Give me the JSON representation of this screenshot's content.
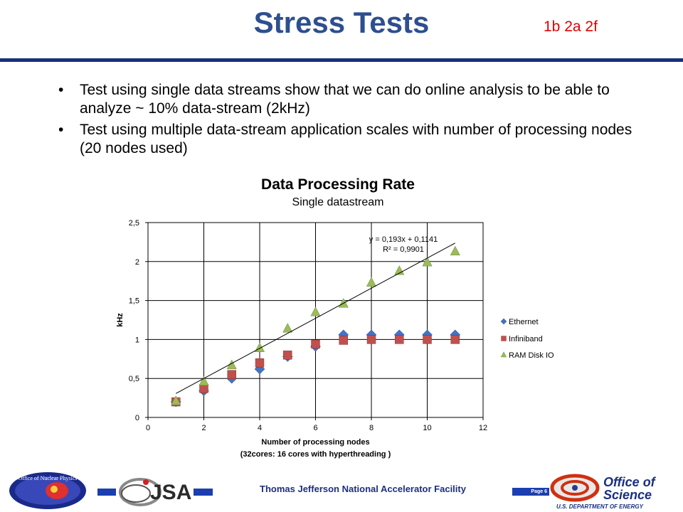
{
  "slide": {
    "title": "Stress Tests",
    "tag": "1b 2a 2f",
    "bullets": [
      "Test using single data streams show that we can do online analysis to be able to analyze ~ 10% data-stream (2kHz)",
      "Test using multiple data-stream application scales with number of processing nodes (20 nodes used)"
    ],
    "footer": "Thomas Jefferson National Accelerator Facility",
    "page_label": "Page 6",
    "logos": {
      "nuclear_physics": "Office of Nuclear Physics",
      "jsa": "JSA",
      "science_line1": "Office of",
      "science_line2": "Science",
      "science_line3": "U.S. DEPARTMENT OF ENERGY"
    }
  },
  "chart_data": {
    "type": "scatter",
    "title": "Data Processing Rate",
    "subtitle": "Single datastream",
    "xlabel_line1": "Number of processing nodes",
    "xlabel_line2": "(32cores: 16 cores with hyperthreading )",
    "ylabel": "kHz",
    "xlim": [
      0,
      12
    ],
    "ylim": [
      0,
      2.5
    ],
    "xticks": [
      "0",
      "2",
      "4",
      "6",
      "8",
      "10",
      "12"
    ],
    "yticks": [
      "0",
      "0,5",
      "1",
      "1,5",
      "2",
      "2,5"
    ],
    "grid": true,
    "legend_position": "right",
    "series": [
      {
        "name": "Ethernet",
        "marker": "diamond",
        "color": "#4472c4",
        "x": [
          1,
          2,
          3,
          4,
          5,
          6,
          7,
          8,
          9,
          10,
          11
        ],
        "y": [
          0.2,
          0.34,
          0.5,
          0.62,
          0.78,
          0.91,
          1.06,
          1.06,
          1.06,
          1.06,
          1.06
        ]
      },
      {
        "name": "Infiniband",
        "marker": "square",
        "color": "#c0504d",
        "x": [
          1,
          2,
          3,
          4,
          5,
          6,
          7,
          8,
          9,
          10,
          11
        ],
        "y": [
          0.2,
          0.37,
          0.55,
          0.7,
          0.8,
          0.94,
          0.99,
          1.0,
          1.0,
          1.0,
          1.0
        ]
      },
      {
        "name": "RAM Disk IO",
        "marker": "triangle",
        "color": "#9bbb59",
        "x": [
          1,
          2,
          3,
          4,
          5,
          6,
          7,
          8,
          9,
          10,
          11
        ],
        "y": [
          0.21,
          0.46,
          0.67,
          0.89,
          1.14,
          1.35,
          1.46,
          1.73,
          1.88,
          1.99,
          2.13
        ]
      }
    ],
    "trendline": {
      "equation": "y = 0,193x + 0,1141",
      "r2": "R² = 0,9901",
      "slope": 0.193,
      "intercept": 0.1141,
      "x_range": [
        1,
        11
      ],
      "color": "#000000"
    }
  }
}
